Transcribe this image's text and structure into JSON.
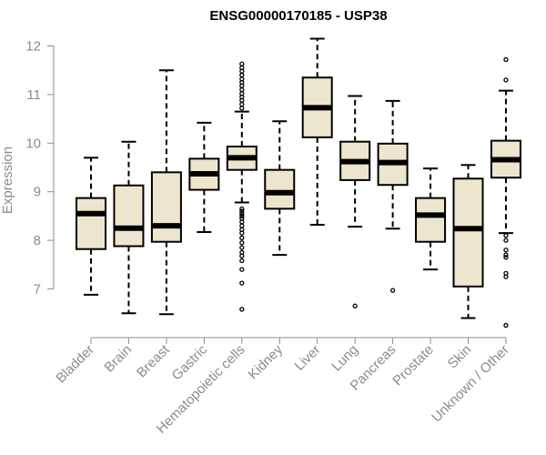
{
  "chart_data": {
    "type": "boxplot",
    "title": "ENSG00000170185 - USP38",
    "xlabel": "",
    "ylabel": "Expression",
    "ylim": [
      6.1,
      12.3
    ],
    "yticks": [
      7,
      8,
      9,
      10,
      11,
      12
    ],
    "box_fill": "#ede6ce",
    "categories": [
      "Bladder",
      "Brain",
      "Breast",
      "Gastric",
      "Hematopoietic cells",
      "Kidney",
      "Liver",
      "Lung",
      "Pancreas",
      "Prostate",
      "Skin",
      "Unknown / Other"
    ],
    "boxes": [
      {
        "name": "Bladder",
        "whisker_low": 6.88,
        "q1": 7.82,
        "median": 8.55,
        "q3": 8.87,
        "whisker_high": 9.7,
        "outliers": []
      },
      {
        "name": "Brain",
        "whisker_low": 6.5,
        "q1": 7.88,
        "median": 8.25,
        "q3": 9.13,
        "whisker_high": 10.03,
        "outliers": []
      },
      {
        "name": "Breast",
        "whisker_low": 6.48,
        "q1": 7.97,
        "median": 8.3,
        "q3": 9.4,
        "whisker_high": 11.5,
        "outliers": []
      },
      {
        "name": "Gastric",
        "whisker_low": 8.17,
        "q1": 9.04,
        "median": 9.37,
        "q3": 9.68,
        "whisker_high": 10.42,
        "outliers": []
      },
      {
        "name": "Hematopoietic cells",
        "whisker_low": 8.78,
        "q1": 9.45,
        "median": 9.7,
        "q3": 9.93,
        "whisker_high": 10.65,
        "outliers": [
          11.63,
          11.55,
          11.48,
          11.4,
          11.32,
          11.25,
          11.18,
          11.1,
          11.02,
          10.95,
          10.88,
          10.8,
          10.72,
          8.65,
          8.6,
          8.55,
          8.5,
          8.45,
          8.38,
          8.3,
          8.22,
          8.15,
          8.05,
          7.95,
          7.85,
          7.75,
          7.68,
          7.58,
          7.4,
          7.12,
          6.58
        ]
      },
      {
        "name": "Kidney",
        "whisker_low": 7.7,
        "q1": 8.65,
        "median": 8.98,
        "q3": 9.45,
        "whisker_high": 10.45,
        "outliers": []
      },
      {
        "name": "Liver",
        "whisker_low": 8.32,
        "q1": 10.12,
        "median": 10.73,
        "q3": 11.35,
        "whisker_high": 12.15,
        "outliers": []
      },
      {
        "name": "Lung",
        "whisker_low": 8.28,
        "q1": 9.24,
        "median": 9.62,
        "q3": 10.03,
        "whisker_high": 10.97,
        "outliers": [
          6.65
        ]
      },
      {
        "name": "Pancreas",
        "whisker_low": 8.24,
        "q1": 9.14,
        "median": 9.6,
        "q3": 9.99,
        "whisker_high": 10.87,
        "outliers": [
          6.97
        ]
      },
      {
        "name": "Prostate",
        "whisker_low": 7.4,
        "q1": 7.97,
        "median": 8.52,
        "q3": 8.87,
        "whisker_high": 9.48,
        "outliers": []
      },
      {
        "name": "Skin",
        "whisker_low": 6.4,
        "q1": 7.05,
        "median": 8.24,
        "q3": 9.27,
        "whisker_high": 9.55,
        "outliers": []
      },
      {
        "name": "Unknown / Other",
        "whisker_low": 8.15,
        "q1": 9.29,
        "median": 9.66,
        "q3": 10.05,
        "whisker_high": 11.08,
        "outliers": [
          11.72,
          11.3,
          8.1,
          8.0,
          7.8,
          7.7,
          7.65,
          7.32,
          7.25,
          6.25
        ]
      }
    ]
  }
}
